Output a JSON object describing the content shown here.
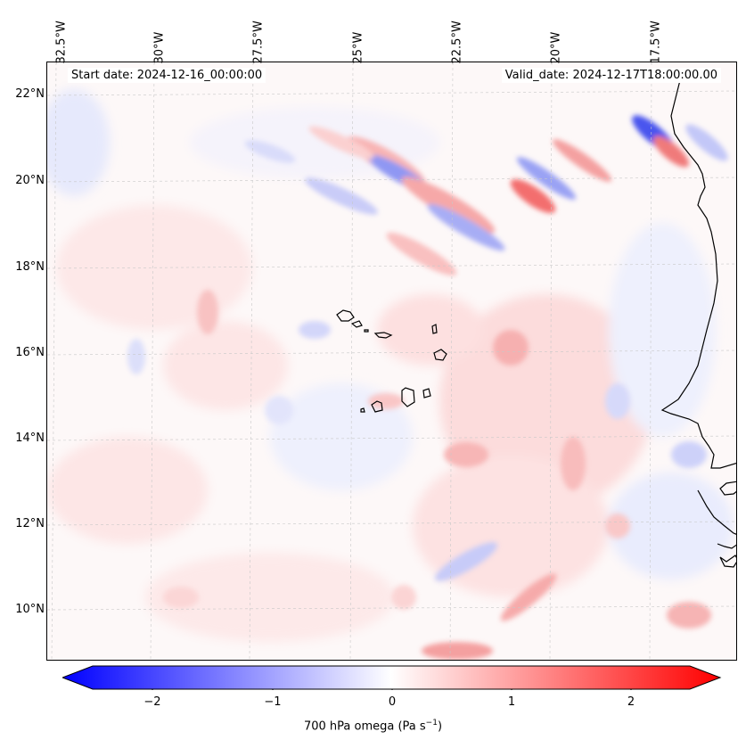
{
  "header": {
    "start_date": "Start date: 2024-12-16_00:00:00",
    "valid_date": "Valid_date: 2024-12-17T18:00:00.00"
  },
  "axes": {
    "lon_ticks": [
      "32.5°W",
      "30°W",
      "27.5°W",
      "25°W",
      "22.5°W",
      "20°W",
      "17.5°W"
    ],
    "lat_ticks": [
      "22°N",
      "20°N",
      "18°N",
      "16°N",
      "14°N",
      "12°N",
      "10°N"
    ]
  },
  "colorbar": {
    "ticks": [
      "−2",
      "−1",
      "0",
      "1",
      "2"
    ],
    "label_main": "700 hPa omega (Pa s",
    "label_sup": "−1",
    "label_end": ")",
    "cmap_negative": "#0000ff",
    "cmap_zero": "#ffffff",
    "cmap_positive": "#ff0000"
  }
}
